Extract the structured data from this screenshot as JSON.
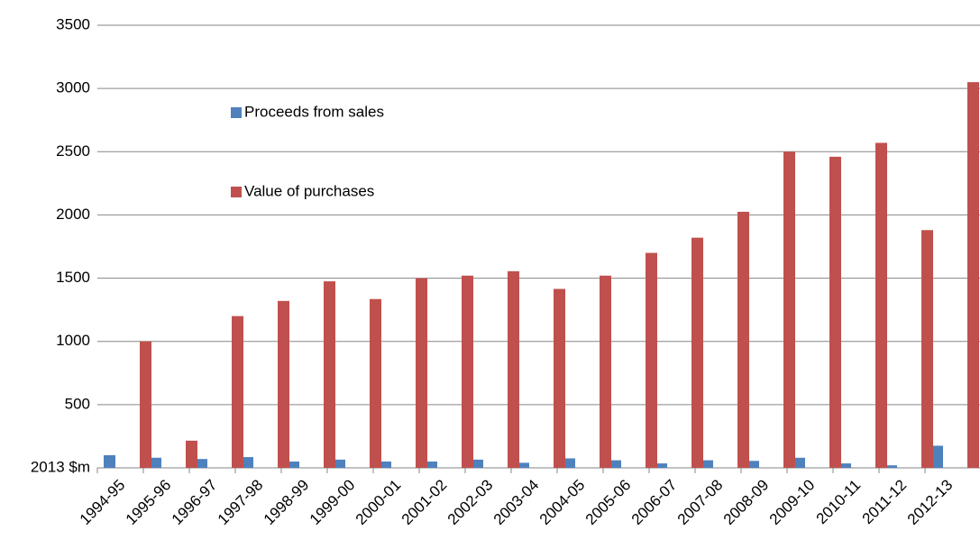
{
  "chart_data": {
    "type": "bar",
    "categories": [
      "1994-95",
      "1995-96",
      "1996-97",
      "1997-98",
      "1998-99",
      "1999-00",
      "2000-01",
      "2001-02",
      "2002-03",
      "2003-04",
      "2004-05",
      "2005-06",
      "2006-07",
      "2007-08",
      "2008-09",
      "2009-10",
      "2010-11",
      "2011-12",
      "2012-13"
    ],
    "series": [
      {
        "name": "Proceeds from sales",
        "color": "#4f81bd",
        "values": [
          100,
          80,
          70,
          85,
          50,
          65,
          50,
          50,
          65,
          40,
          75,
          60,
          35,
          60,
          55,
          80,
          35,
          20,
          175
        ]
      },
      {
        "name": "Value of purchases",
        "color": "#c0504d",
        "values": [
          1000,
          215,
          1200,
          1320,
          1475,
          1335,
          1500,
          1520,
          1555,
          1415,
          1520,
          1700,
          1820,
          2025,
          2500,
          2460,
          2570,
          1880,
          3050
        ]
      }
    ],
    "ylim": [
      0,
      3500
    ],
    "yticks": [
      {
        "value": 0,
        "label": "2013 $m"
      },
      500,
      1000,
      1500,
      2000,
      2500,
      3000,
      3500
    ],
    "grid": true
  }
}
